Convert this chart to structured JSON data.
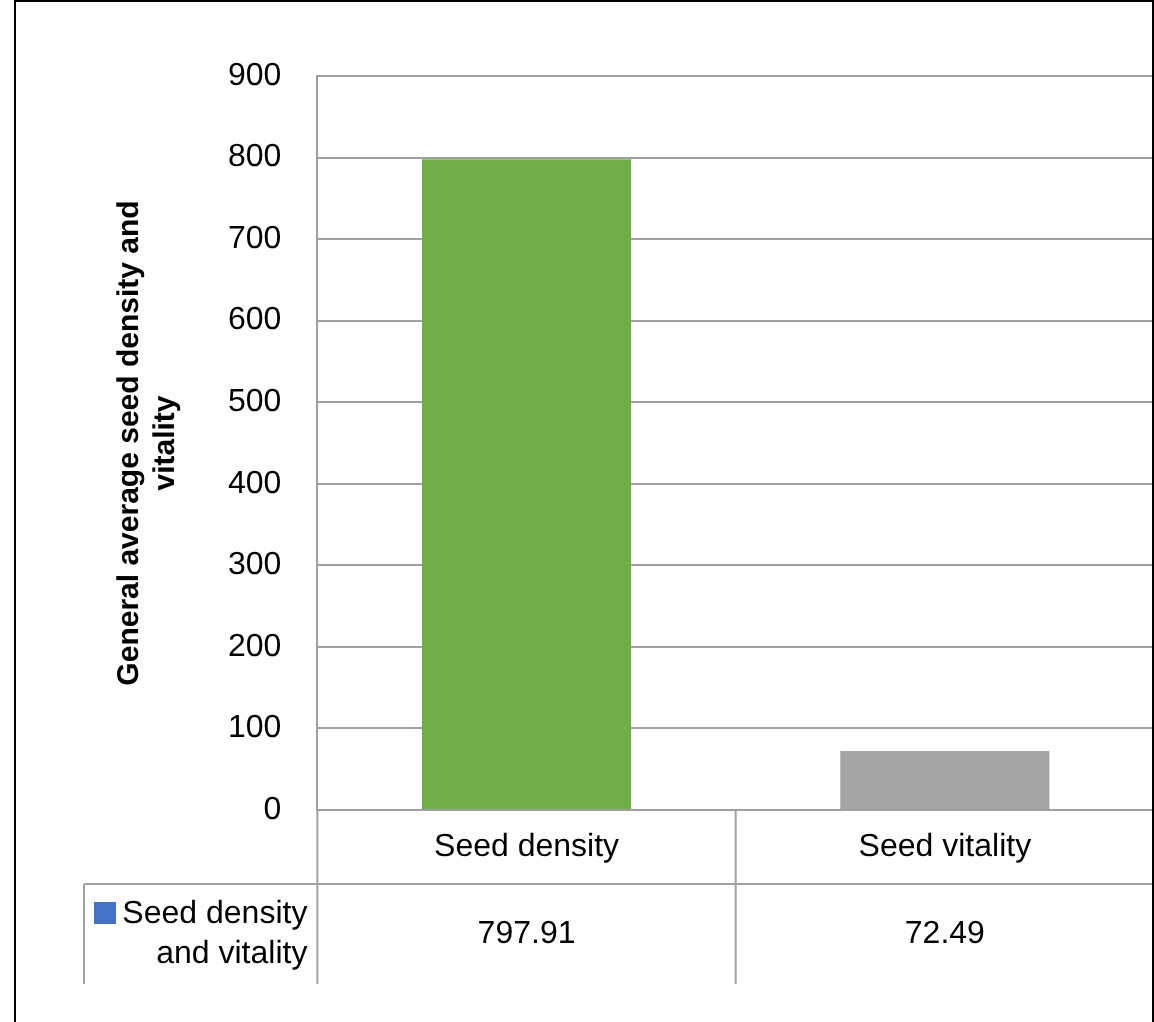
{
  "chart_data": {
    "type": "bar",
    "ylabel": "General average seed density and vitality",
    "categories": [
      "Seed density",
      "Seed vitality"
    ],
    "series": [
      {
        "name": "Seed density and vitality",
        "color": "#4472c4",
        "colors": [
          "#70ad47",
          "#a5a5a5"
        ],
        "values": [
          797.91,
          72.49
        ]
      }
    ],
    "ylim": [
      0,
      900
    ],
    "yticks": [
      0,
      100,
      200,
      300,
      400,
      500,
      600,
      700,
      800,
      900
    ],
    "grid": "y",
    "legend": "bottom left",
    "data_labels": true
  }
}
